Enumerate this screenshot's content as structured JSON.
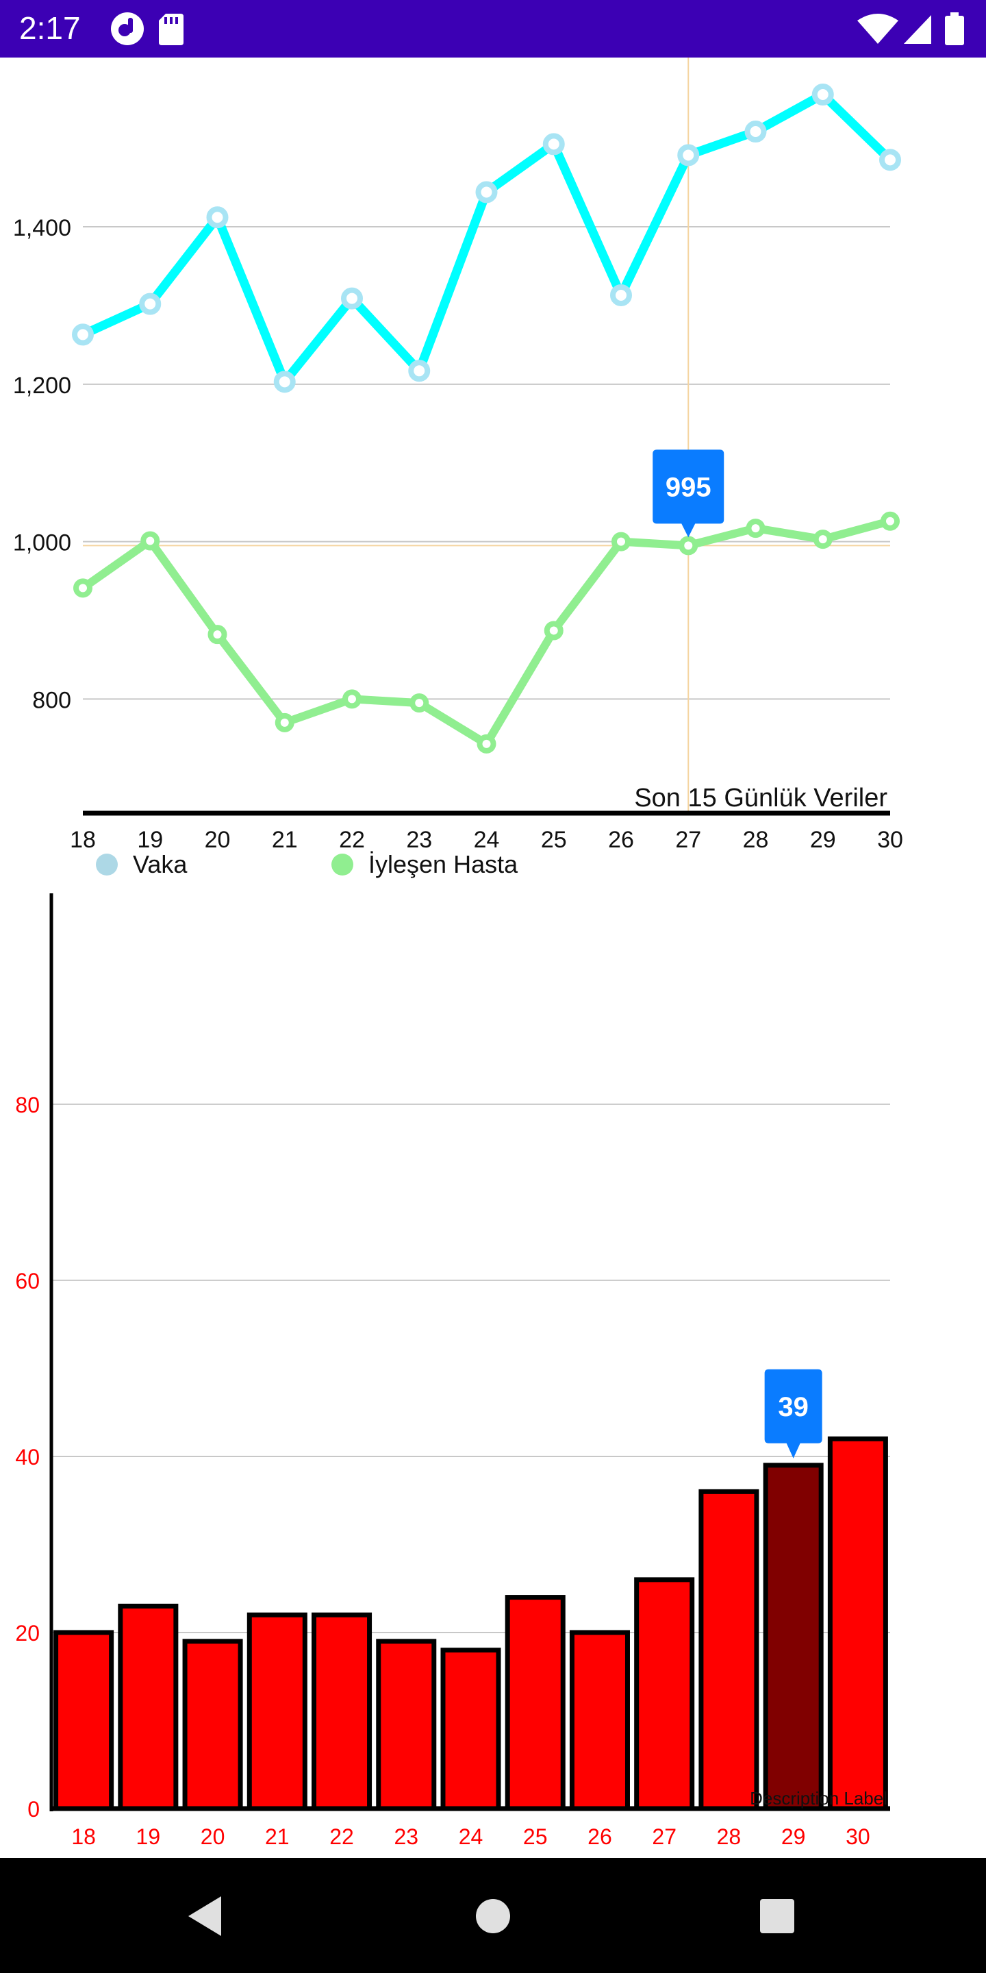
{
  "status_bar": {
    "time": "2:17",
    "icons_left": [
      "app-notification-icon",
      "sd-card-icon"
    ],
    "icons_right": [
      "wifi-icon",
      "cellular-signal-icon",
      "battery-icon"
    ]
  },
  "colors": {
    "status_bar": "#3c00b4",
    "vaka": "#00ffff",
    "vaka_marker": "#a8e4f4",
    "iyilesen": "#90ee90",
    "bar_fill": "#ff0000",
    "bar_selected": "#800000",
    "tooltip": "#0a7cff",
    "bar_axis_text": "#ff0000",
    "crosshair": "#f5d4a0"
  },
  "line_chart": {
    "description": "Son 15 Günlük Veriler",
    "legend": [
      {
        "label": "Vaka",
        "color": "#add8e6"
      },
      {
        "label": "İyleşen Hasta",
        "color": "#90ee90"
      }
    ],
    "tooltip": {
      "value": "995"
    }
  },
  "bar_chart": {
    "description": "Description Label",
    "tooltip": {
      "value": "39"
    }
  },
  "chart_data": [
    {
      "type": "line",
      "title": "Son 15 Günlük Veriler",
      "x": [
        18,
        19,
        20,
        21,
        22,
        23,
        24,
        25,
        26,
        27,
        28,
        29,
        30
      ],
      "xticks": [
        "18",
        "19",
        "20",
        "21",
        "22",
        "23",
        "24",
        "25",
        "26",
        "27",
        "28",
        "29",
        "30"
      ],
      "yticks": [
        "800",
        "1,000",
        "1,200",
        "1,400"
      ],
      "ytick_values": [
        800,
        1000,
        1200,
        1400
      ],
      "ylim": [
        655,
        1615
      ],
      "grid": true,
      "legend_position": "bottom-left",
      "series": [
        {
          "name": "Vaka",
          "values": [
            1263,
            1302,
            1412,
            1203,
            1309,
            1217,
            1444,
            1505,
            1313,
            1491,
            1521,
            1568,
            1485
          ]
        },
        {
          "name": "İyleşen Hasta",
          "values": [
            941,
            1001,
            882,
            770,
            800,
            795,
            743,
            887,
            1000,
            995,
            1017,
            1003,
            1026
          ]
        }
      ],
      "highlight": {
        "x": 27,
        "value": 995
      }
    },
    {
      "type": "bar",
      "categories": [
        "18",
        "19",
        "20",
        "21",
        "22",
        "23",
        "24",
        "25",
        "26",
        "27",
        "28",
        "29",
        "30"
      ],
      "values": [
        20,
        23,
        19,
        22,
        22,
        19,
        18,
        24,
        20,
        26,
        36,
        39,
        42
      ],
      "yticks": [
        "0",
        "20",
        "40",
        "60",
        "80"
      ],
      "ytick_values": [
        0,
        20,
        40,
        60,
        80
      ],
      "ylim": [
        0,
        94
      ],
      "grid": true,
      "selected_index": 11,
      "annotation": "Description Label"
    }
  ]
}
